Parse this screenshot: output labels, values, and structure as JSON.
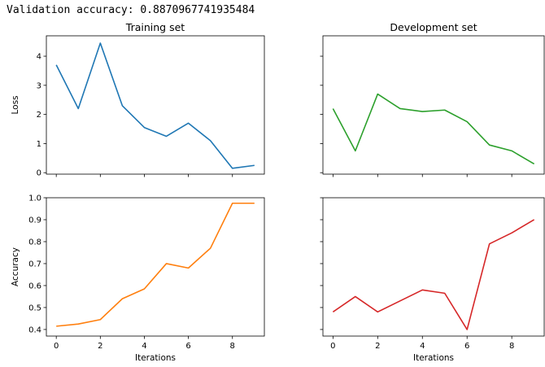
{
  "header": {
    "validation_text": "Validation accuracy: 0.8870967741935484"
  },
  "colors": {
    "train_loss": "#1f77b4",
    "dev_loss": "#2ca02c",
    "train_acc": "#ff7f0e",
    "dev_acc": "#d62728"
  },
  "chart_data": [
    {
      "type": "line",
      "title": "Training set",
      "xlabel": "",
      "ylabel": "Loss",
      "x": [
        0,
        1,
        2,
        3,
        4,
        5,
        6,
        7,
        8,
        9
      ],
      "values": [
        3.7,
        2.2,
        4.45,
        2.3,
        1.55,
        1.25,
        1.7,
        1.1,
        0.15,
        0.25
      ],
      "ylim": [
        -0.05,
        4.7
      ],
      "yticks": [
        0,
        1,
        2,
        3,
        4
      ],
      "xticks": [
        0,
        2,
        4,
        6,
        8
      ],
      "color": "#1f77b4"
    },
    {
      "type": "line",
      "title": "Development set",
      "xlabel": "",
      "ylabel": "",
      "x": [
        0,
        1,
        2,
        3,
        4,
        5,
        6,
        7,
        8,
        9
      ],
      "values": [
        2.2,
        0.75,
        2.7,
        2.2,
        2.1,
        2.15,
        1.75,
        0.95,
        0.75,
        0.3
      ],
      "ylim": [
        -0.05,
        4.7
      ],
      "yticks": [
        0,
        1,
        2,
        3,
        4
      ],
      "xticks": [
        0,
        2,
        4,
        6,
        8
      ],
      "color": "#2ca02c"
    },
    {
      "type": "line",
      "title": "",
      "xlabel": "Iterations",
      "ylabel": "Accuracy",
      "x": [
        0,
        1,
        2,
        3,
        4,
        5,
        6,
        7,
        8,
        9
      ],
      "values": [
        0.415,
        0.425,
        0.445,
        0.54,
        0.585,
        0.7,
        0.68,
        0.77,
        0.975,
        0.975
      ],
      "ylim": [
        0.37,
        1.0
      ],
      "yticks": [
        0.4,
        0.5,
        0.6,
        0.7,
        0.8,
        0.9,
        1.0
      ],
      "ytick_labels": [
        "0.4",
        "0.5",
        "0.6",
        "0.7",
        "0.8",
        "0.9",
        "1.0"
      ],
      "xticks": [
        0,
        2,
        4,
        6,
        8
      ],
      "color": "#ff7f0e"
    },
    {
      "type": "line",
      "title": "",
      "xlabel": "Iterations",
      "ylabel": "",
      "x": [
        0,
        1,
        2,
        3,
        4,
        5,
        6,
        7,
        8,
        9
      ],
      "values": [
        0.48,
        0.55,
        0.48,
        0.53,
        0.58,
        0.565,
        0.4,
        0.79,
        0.84,
        0.9
      ],
      "ylim": [
        0.37,
        1.0
      ],
      "yticks": [
        0.4,
        0.5,
        0.6,
        0.7,
        0.8,
        0.9,
        1.0
      ],
      "xticks": [
        0,
        2,
        4,
        6,
        8
      ],
      "color": "#d62728"
    }
  ]
}
